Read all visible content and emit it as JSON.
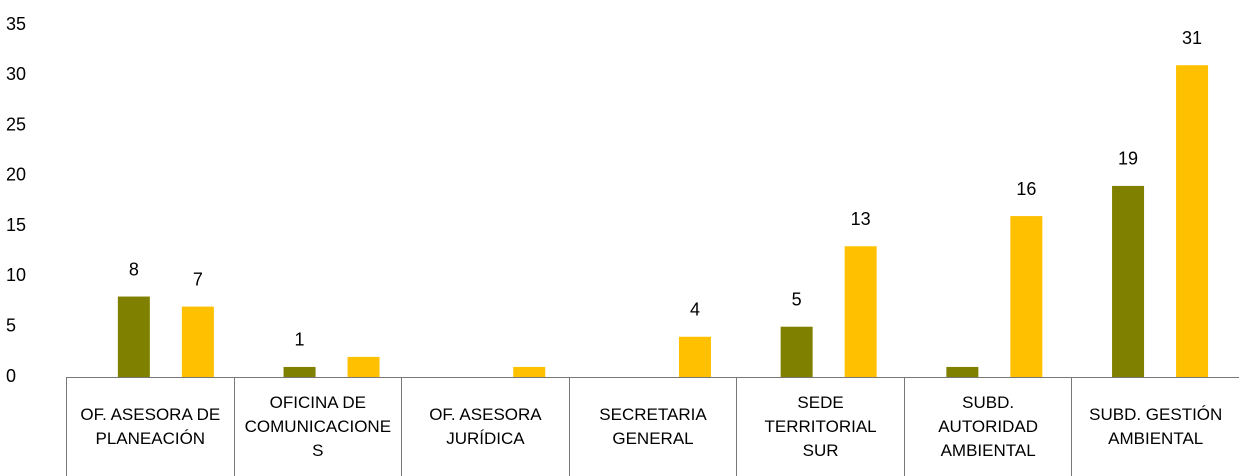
{
  "chart_data": {
    "type": "bar",
    "categories": [
      "OF. ASESORA DE PLANEACIÓN",
      "OFICINA DE COMUNICACIONES",
      "OF. ASESORA JURÍDICA",
      "SECRETARIA GENERAL",
      "SEDE TERRITORIAL SUR",
      "SUBD. AUTORIDAD AMBIENTAL",
      "SUBD. GESTIÓN AMBIENTAL"
    ],
    "series": [
      {
        "color": "#808000",
        "values": [
          8,
          1,
          null,
          null,
          5,
          1,
          19
        ],
        "value_labels": [
          "8",
          "1",
          null,
          null,
          "5",
          null,
          "19"
        ]
      },
      {
        "color": "#ffc000",
        "values": [
          7,
          2,
          1,
          4,
          13,
          16,
          31
        ],
        "value_labels": [
          "7",
          null,
          null,
          "4",
          "13",
          "16",
          "31"
        ]
      }
    ],
    "ylim": [
      0,
      35
    ],
    "yticks": [
      0,
      5,
      10,
      15,
      20,
      25,
      30,
      35
    ],
    "grid": false
  }
}
